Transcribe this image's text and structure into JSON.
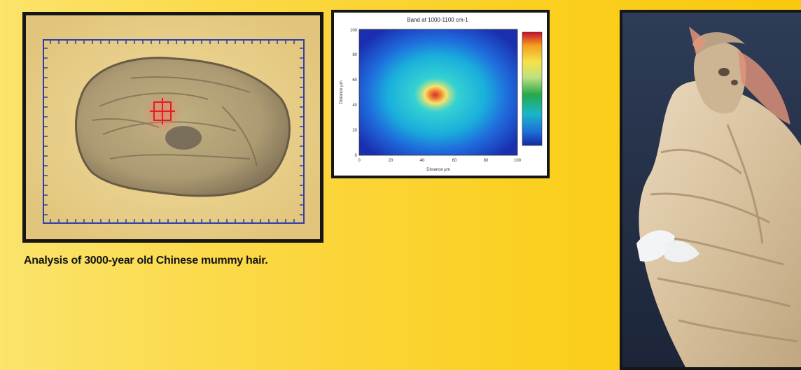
{
  "chemical_map": {
    "title": "Band at 1000-1100 cm-1",
    "x_axis_label": "Distance µm",
    "y_axis_label": "Distance µm",
    "x_ticks": [
      "0",
      "20",
      "40",
      "60",
      "80",
      "100"
    ],
    "y_ticks": [
      "0",
      "20",
      "40",
      "60",
      "80",
      "100"
    ],
    "colorbar": [
      "#c8102e",
      "#f4a020",
      "#f5e24a",
      "#bfe080",
      "#27a84a",
      "#19b7c8",
      "#1d6fd8",
      "#142a9c"
    ]
  },
  "caption": "Analysis of 3000-year old Chinese mummy hair.",
  "colors": {
    "background": "#fbd740",
    "frame": "#161616",
    "caption_text": "#141414"
  }
}
